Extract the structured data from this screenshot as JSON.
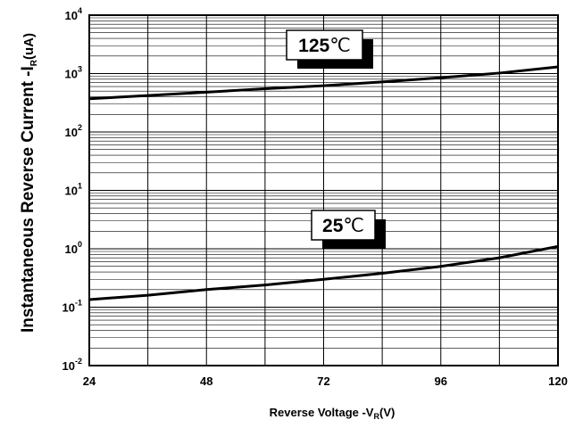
{
  "chart_data": {
    "type": "line",
    "xlabel": {
      "main": "Reverse  Voltage -V",
      "sub": "R",
      "tail": "(V)"
    },
    "ylabel": {
      "main": "Instantaneous Reverse Current -I",
      "sub": "R",
      "tail": "(uA)"
    },
    "xlim": [
      24,
      120
    ],
    "ylim": [
      0.01,
      10000
    ],
    "yscale": "log",
    "grid": true,
    "x_ticks": [
      24,
      48,
      72,
      96,
      120
    ],
    "x_tick_labels": [
      "24",
      "48",
      "72",
      "96",
      "120"
    ],
    "y_ticks": [
      0.01,
      0.1,
      1,
      10,
      100,
      1000,
      10000
    ],
    "y_tick_labels": [
      {
        "base": "10",
        "exp": "-2"
      },
      {
        "base": "10",
        "exp": "-1"
      },
      {
        "base": "10",
        "exp": "0"
      },
      {
        "base": "10",
        "exp": "1"
      },
      {
        "base": "10",
        "exp": "2"
      },
      {
        "base": "10",
        "exp": "3"
      },
      {
        "base": "10",
        "exp": "4"
      }
    ],
    "series": [
      {
        "name": "125℃",
        "x": [
          24,
          36,
          48,
          60,
          72,
          84,
          96,
          108,
          120
        ],
        "values": [
          370,
          420,
          480,
          550,
          620,
          720,
          850,
          1020,
          1300
        ]
      },
      {
        "name": "25℃",
        "x": [
          24,
          36,
          48,
          60,
          72,
          84,
          96,
          108,
          120
        ],
        "values": [
          0.135,
          0.16,
          0.2,
          0.24,
          0.3,
          0.38,
          0.5,
          0.7,
          1.1
        ]
      }
    ],
    "annotations": [
      {
        "text": "125",
        "unit": "℃",
        "series": "125℃"
      },
      {
        "text": "25",
        "unit": "℃",
        "series": "25℃"
      }
    ]
  }
}
